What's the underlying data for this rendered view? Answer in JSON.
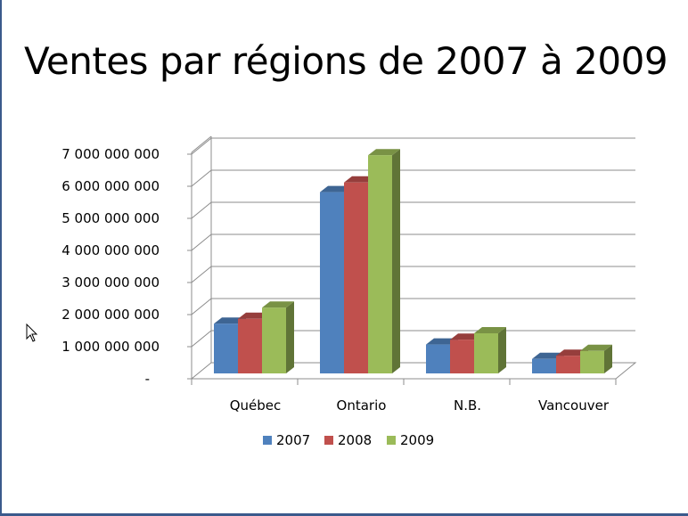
{
  "title": "Ventes par régions de 2007 à 2009",
  "colors": {
    "2007": "#4f81bd",
    "2008": "#c0504d",
    "2009": "#9bbb59"
  },
  "cursor_icon": "mouse-pointer-icon",
  "chart_data": {
    "type": "bar",
    "style": "3d-clustered-column",
    "title": "Ventes par régions de 2007 à 2009",
    "categories": [
      "Québec",
      "Ontario",
      "N.B.",
      "Vancouver"
    ],
    "series": [
      {
        "name": "2007",
        "values": [
          1550000000,
          5650000000,
          900000000,
          450000000
        ]
      },
      {
        "name": "2008",
        "values": [
          1700000000,
          5950000000,
          1050000000,
          550000000
        ]
      },
      {
        "name": "2009",
        "values": [
          2050000000,
          6800000000,
          1250000000,
          700000000
        ]
      }
    ],
    "ylim": [
      0,
      7000000000
    ],
    "yticks": [
      {
        "value": 0,
        "label": "-"
      },
      {
        "value": 1000000000,
        "label": "1 000 000 000"
      },
      {
        "value": 2000000000,
        "label": "2 000 000 000"
      },
      {
        "value": 3000000000,
        "label": "3 000 000 000"
      },
      {
        "value": 4000000000,
        "label": "4 000 000 000"
      },
      {
        "value": 5000000000,
        "label": "5 000 000 000"
      },
      {
        "value": 6000000000,
        "label": "6 000 000 000"
      },
      {
        "value": 7000000000,
        "label": "7 000 000 000"
      }
    ],
    "grid": true,
    "legend": "bottom"
  }
}
